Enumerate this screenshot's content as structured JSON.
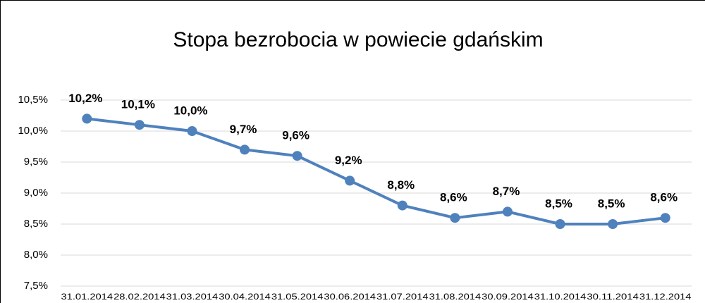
{
  "chart_data": {
    "type": "line",
    "title": "Stopa bezrobocia w powiecie gdańskim",
    "categories": [
      "31.01.2014",
      "28.02.2014",
      "31.03.2014",
      "30.04.2014",
      "31.05.2014",
      "30.06.2014",
      "31.07.2014",
      "31.08.2014",
      "30.09.2014",
      "31.10.2014",
      "30.11.2014",
      "31.12.2014"
    ],
    "values": [
      10.2,
      10.1,
      10.0,
      9.7,
      9.6,
      9.2,
      8.8,
      8.6,
      8.7,
      8.5,
      8.5,
      8.6
    ],
    "value_labels": [
      "10,2%",
      "10,1%",
      "10,0%",
      "9,7%",
      "9,6%",
      "9,2%",
      "8,8%",
      "8,6%",
      "8,7%",
      "8,5%",
      "8,5%",
      "8,6%"
    ],
    "color": "#4f81bd",
    "ylim": [
      7.5,
      10.5
    ],
    "yticks": [
      {
        "value": 7.5,
        "label": "7,5%"
      },
      {
        "value": 8.0,
        "label": "8,0%"
      },
      {
        "value": 8.5,
        "label": "8,5%"
      },
      {
        "value": 9.0,
        "label": "9,0%"
      },
      {
        "value": 9.5,
        "label": "9,5%"
      },
      {
        "value": 10.0,
        "label": "10,0%"
      },
      {
        "value": 10.5,
        "label": "10,5%"
      }
    ],
    "grid": true
  }
}
